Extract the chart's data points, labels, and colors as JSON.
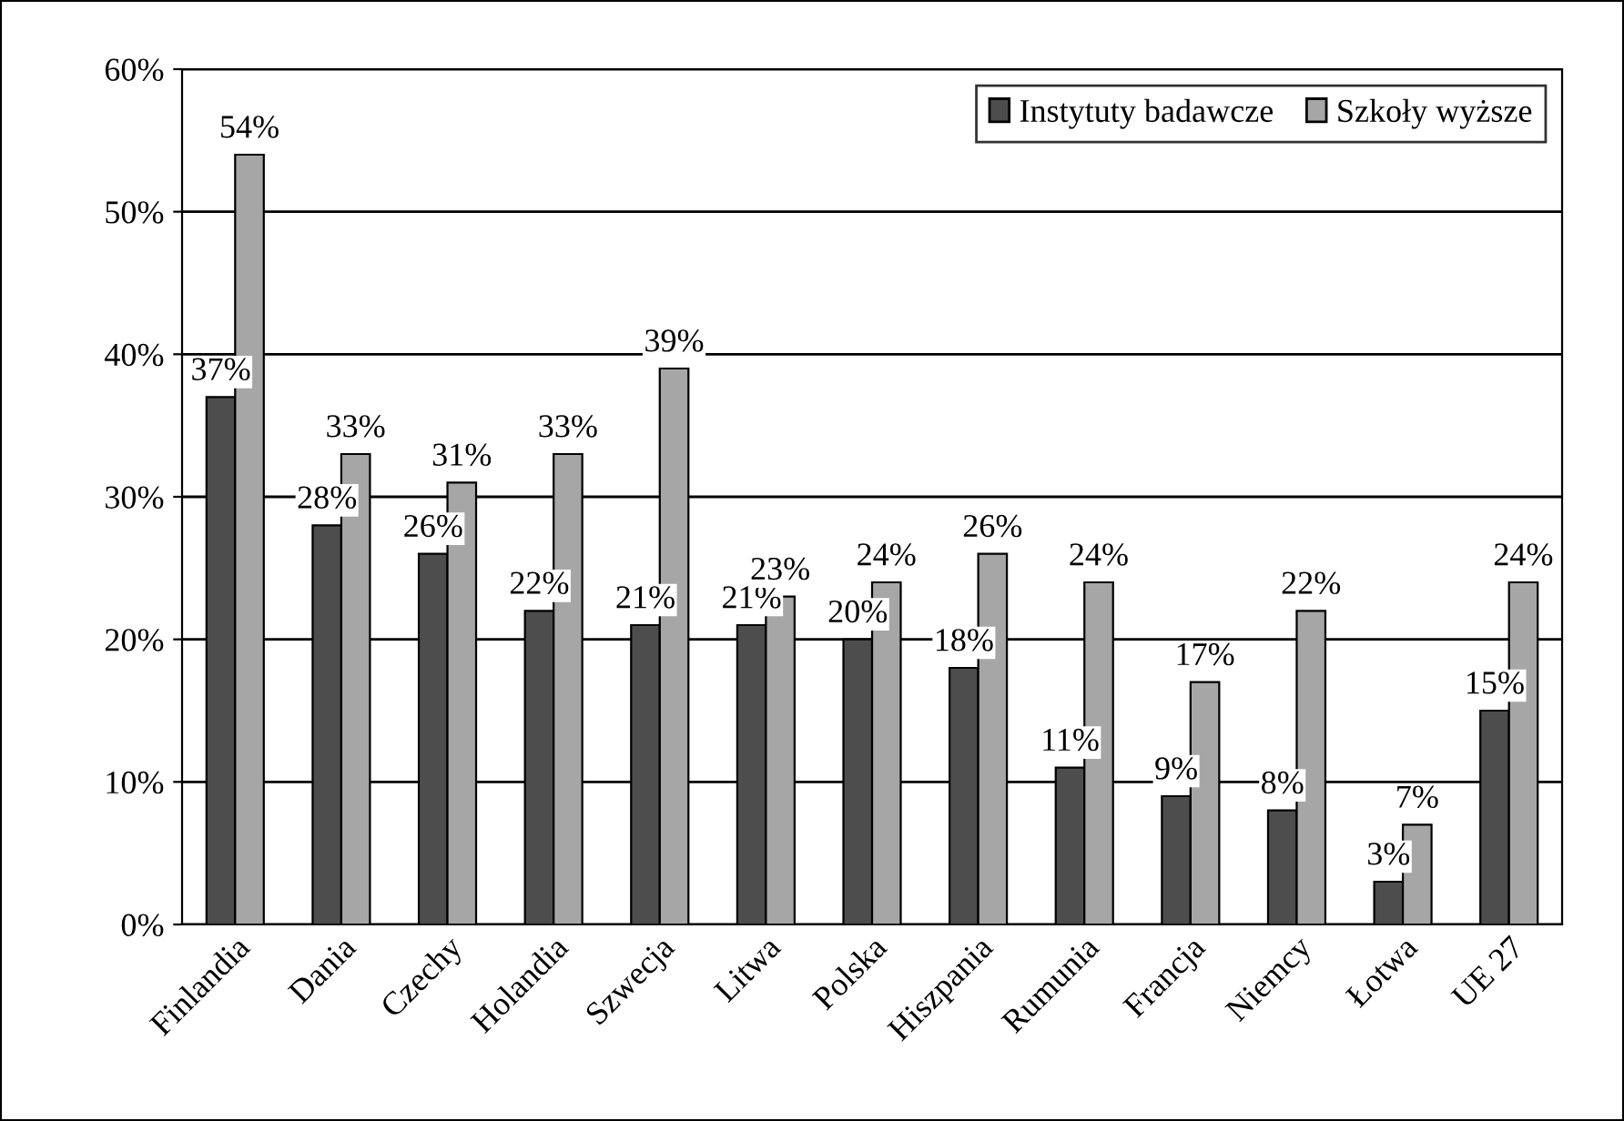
{
  "chart_data": {
    "type": "bar",
    "categories": [
      "Finlandia",
      "Dania",
      "Czechy",
      "Holandia",
      "Szwecja",
      "Litwa",
      "Polska",
      "Hiszpania",
      "Rumunia",
      "Francja",
      "Niemcy",
      "Łotwa",
      "UE 27"
    ],
    "series": [
      {
        "name": "Instytuty badawcze",
        "color": "#4d4d4d",
        "values": [
          37,
          28,
          26,
          22,
          21,
          21,
          20,
          18,
          11,
          9,
          8,
          3,
          15
        ],
        "value_labels": [
          "37%",
          "28%",
          "26%",
          "22%",
          "21%",
          "21%",
          "20%",
          "18%",
          "11%",
          "9%",
          "8%",
          "3%",
          "15%"
        ]
      },
      {
        "name": "Szkoły wyższe",
        "color": "#a6a6a6",
        "values": [
          54,
          33,
          31,
          33,
          39,
          23,
          24,
          26,
          24,
          17,
          22,
          7,
          24
        ],
        "value_labels": [
          "54%",
          "33%",
          "31%",
          "33%",
          "39%",
          "23%",
          "24%",
          "26%",
          "24%",
          "17%",
          "22%",
          "7%",
          "24%"
        ]
      }
    ],
    "ylim": [
      0,
      60
    ],
    "yticks": [
      {
        "value": 0,
        "label": "0%"
      },
      {
        "value": 10,
        "label": "10%"
      },
      {
        "value": 20,
        "label": "20%"
      },
      {
        "value": 30,
        "label": "30%"
      },
      {
        "value": 40,
        "label": "40%"
      },
      {
        "value": 50,
        "label": "50%"
      },
      {
        "value": 60,
        "label": "60%"
      }
    ],
    "grid": "y",
    "legend": "top right"
  }
}
